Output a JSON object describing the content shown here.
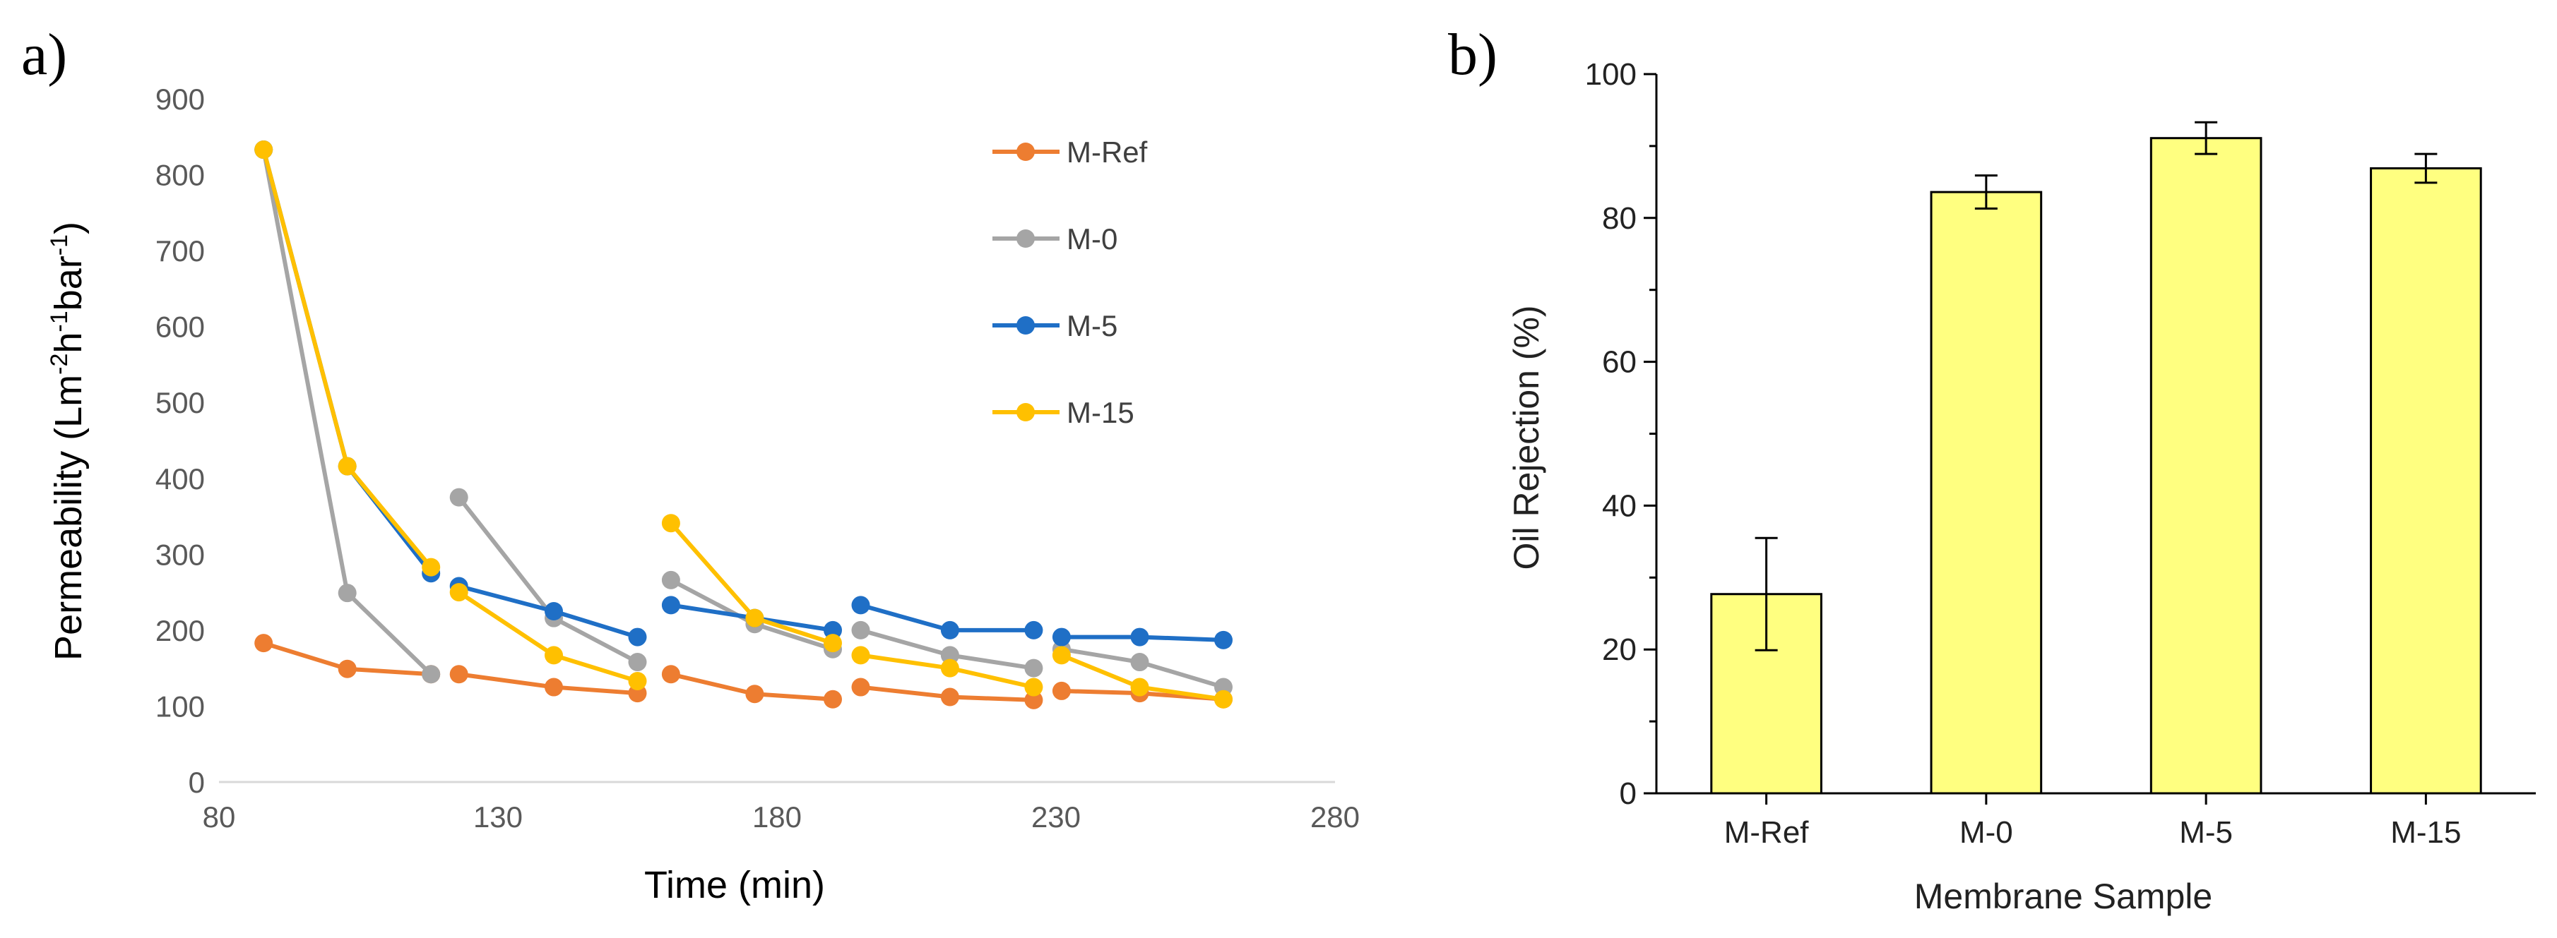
{
  "chart_data": [
    {
      "panel_label": "a)",
      "type": "line",
      "xlabel": "Time (min)",
      "ylabel": {
        "base": "Permeability (Lm",
        "sup1": "-2",
        "mid1": "h",
        "sup2": "-1",
        "mid2": "bar",
        "sup3": "-1",
        "end": ")"
      },
      "xlim": [
        80,
        280
      ],
      "ylim": [
        0,
        900
      ],
      "xticks": [
        80,
        130,
        180,
        230,
        280
      ],
      "yticks": [
        0,
        100,
        200,
        300,
        400,
        500,
        600,
        700,
        800,
        900
      ],
      "legend_position": "top-right",
      "series": [
        {
          "name": "M-Ref",
          "color": "#ED7D31",
          "segments": [
            [
              [
                88,
                183
              ],
              [
                103,
                149
              ],
              [
                118,
                142
              ]
            ],
            [
              [
                123,
                142
              ],
              [
                140,
                125
              ],
              [
                155,
                117
              ]
            ],
            [
              [
                161,
                142
              ],
              [
                176,
                116
              ],
              [
                190,
                109
              ]
            ],
            [
              [
                195,
                125
              ],
              [
                211,
                112
              ],
              [
                226,
                108
              ]
            ],
            [
              [
                231,
                120
              ],
              [
                245,
                117
              ],
              [
                260,
                109
              ]
            ]
          ]
        },
        {
          "name": "M-0",
          "color": "#A5A5A5",
          "segments": [
            [
              [
                88,
                833
              ],
              [
                103,
                249
              ],
              [
                118,
                142
              ]
            ],
            [
              [
                123,
                375
              ],
              [
                140,
                216
              ],
              [
                155,
                158
              ]
            ],
            [
              [
                161,
                266
              ],
              [
                176,
                208
              ],
              [
                190,
                175
              ]
            ],
            [
              [
                195,
                200
              ],
              [
                211,
                167
              ],
              [
                226,
                150
              ]
            ],
            [
              [
                231,
                175
              ],
              [
                245,
                158
              ],
              [
                260,
                125
              ]
            ]
          ]
        },
        {
          "name": "M-5",
          "color": "#1F6FC6",
          "segments": [
            [
              [
                88,
                833
              ],
              [
                103,
                416
              ],
              [
                118,
                275
              ]
            ],
            [
              [
                123,
                258
              ],
              [
                140,
                225
              ],
              [
                155,
                191
              ]
            ],
            [
              [
                161,
                233
              ],
              [
                176,
                216
              ],
              [
                190,
                200
              ]
            ],
            [
              [
                195,
                233
              ],
              [
                211,
                200
              ],
              [
                226,
                200
              ]
            ],
            [
              [
                231,
                191
              ],
              [
                245,
                191
              ],
              [
                260,
                187
              ]
            ]
          ]
        },
        {
          "name": "M-15",
          "color": "#FFC000",
          "segments": [
            [
              [
                88,
                833
              ],
              [
                103,
                416
              ],
              [
                118,
                283
              ]
            ],
            [
              [
                123,
                250
              ],
              [
                140,
                167
              ],
              [
                155,
                133
              ]
            ],
            [
              [
                161,
                341
              ],
              [
                176,
                216
              ],
              [
                190,
                183
              ]
            ],
            [
              [
                195,
                167
              ],
              [
                211,
                150
              ],
              [
                226,
                125
              ]
            ],
            [
              [
                231,
                167
              ],
              [
                245,
                125
              ],
              [
                260,
                109
              ]
            ]
          ]
        }
      ]
    },
    {
      "panel_label": "b)",
      "type": "bar",
      "xlabel": "Membrane Sample",
      "ylabel": "Oil Rejection (%)",
      "categories": [
        "M-Ref",
        "M-0",
        "M-5",
        "M-15"
      ],
      "values": [
        27.7,
        83.6,
        91.1,
        86.9
      ],
      "errors": [
        7.8,
        2.3,
        2.2,
        2.0
      ],
      "ylim": [
        0,
        100
      ],
      "yticks": [
        0,
        20,
        40,
        60,
        80,
        100
      ],
      "bar_color": "#FFFF80",
      "edge_color": "#000000"
    }
  ]
}
